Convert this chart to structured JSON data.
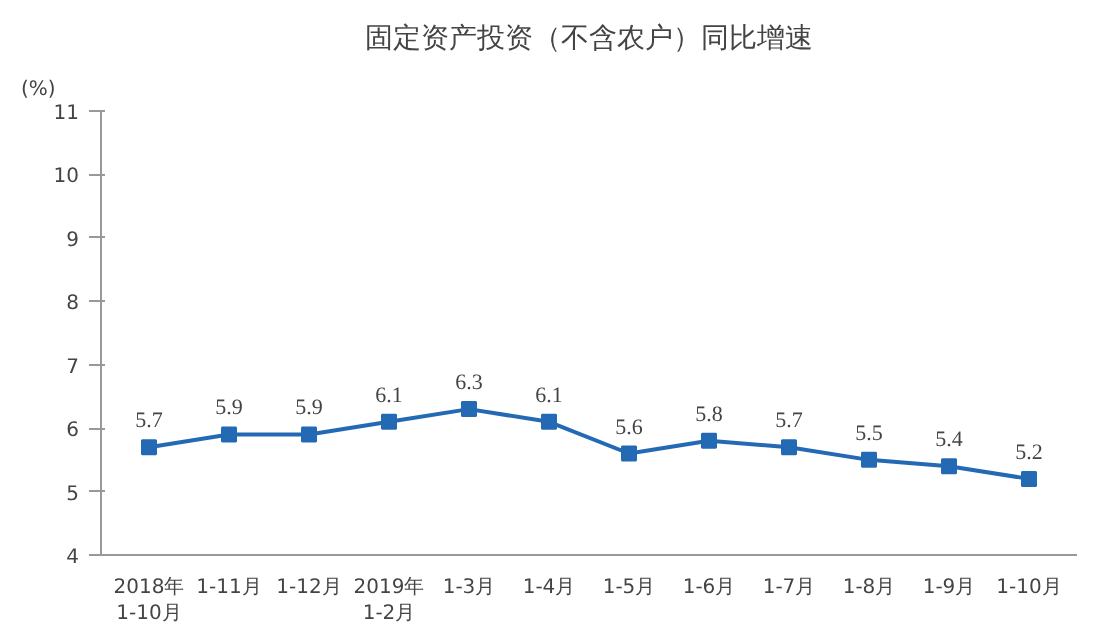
{
  "chart_data": {
    "type": "line",
    "title": "固定资产投资（不含农户）同比增速",
    "ylabel": "(%)",
    "categories": [
      "2018年\n1-10月",
      "1-11月",
      "1-12月",
      "2019年\n1-2月",
      "1-3月",
      "1-4月",
      "1-5月",
      "1-6月",
      "1-7月",
      "1-8月",
      "1-9月",
      "1-10月"
    ],
    "series": [
      {
        "color": "#2369b4",
        "values": [
          5.7,
          5.9,
          5.9,
          6.1,
          6.3,
          6.1,
          5.6,
          5.8,
          5.7,
          5.5,
          5.4,
          5.2
        ]
      }
    ],
    "ylim": [
      4,
      11
    ],
    "yticks": [
      4,
      5,
      6,
      7,
      8,
      9,
      10,
      11
    ],
    "marker": "square",
    "line_style": "solid",
    "data_labels": true,
    "grid": false
  }
}
